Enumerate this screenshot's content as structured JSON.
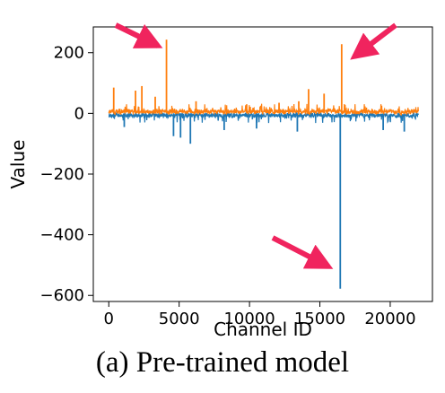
{
  "chart_data": {
    "type": "line",
    "xlabel": "Channel ID",
    "ylabel": "Value",
    "xlim": [
      -1100,
      23000
    ],
    "ylim": [
      -620,
      285
    ],
    "x_ticks": [
      0,
      5000,
      10000,
      15000,
      20000
    ],
    "y_ticks": [
      200,
      0,
      -200,
      -400,
      -600
    ],
    "grid": false,
    "n_channels": 22016,
    "series": [
      {
        "color": "#ff7f0e",
        "spikes": [
          {
            "x": 350,
            "y": 85
          },
          {
            "x": 1900,
            "y": 75
          },
          {
            "x": 2350,
            "y": 90
          },
          {
            "x": 3300,
            "y": 55
          },
          {
            "x": 4100,
            "y": 243
          },
          {
            "x": 6200,
            "y": 40
          },
          {
            "x": 9800,
            "y": 30
          },
          {
            "x": 12100,
            "y": 35
          },
          {
            "x": 13500,
            "y": 40
          },
          {
            "x": 14200,
            "y": 80
          },
          {
            "x": 15300,
            "y": 65
          },
          {
            "x": 16550,
            "y": 228
          }
        ]
      },
      {
        "color": "#1f77b4",
        "spikes": [
          {
            "x": 1100,
            "y": -45
          },
          {
            "x": 4600,
            "y": -75
          },
          {
            "x": 5100,
            "y": -80
          },
          {
            "x": 5800,
            "y": -100
          },
          {
            "x": 8200,
            "y": -55
          },
          {
            "x": 10500,
            "y": -50
          },
          {
            "x": 13400,
            "y": -60
          },
          {
            "x": 16450,
            "y": -578
          },
          {
            "x": 19500,
            "y": -55
          },
          {
            "x": 21000,
            "y": -60
          }
        ]
      }
    ],
    "annotations": [
      {
        "type": "arrow",
        "color": "#f0245e",
        "target": "orange spike near x=4100"
      },
      {
        "type": "arrow",
        "color": "#f0245e",
        "target": "orange spike near x=16550"
      },
      {
        "type": "arrow",
        "color": "#f0245e",
        "target": "blue spike near x=16450"
      }
    ]
  },
  "caption": "(a) Pre-trained model"
}
